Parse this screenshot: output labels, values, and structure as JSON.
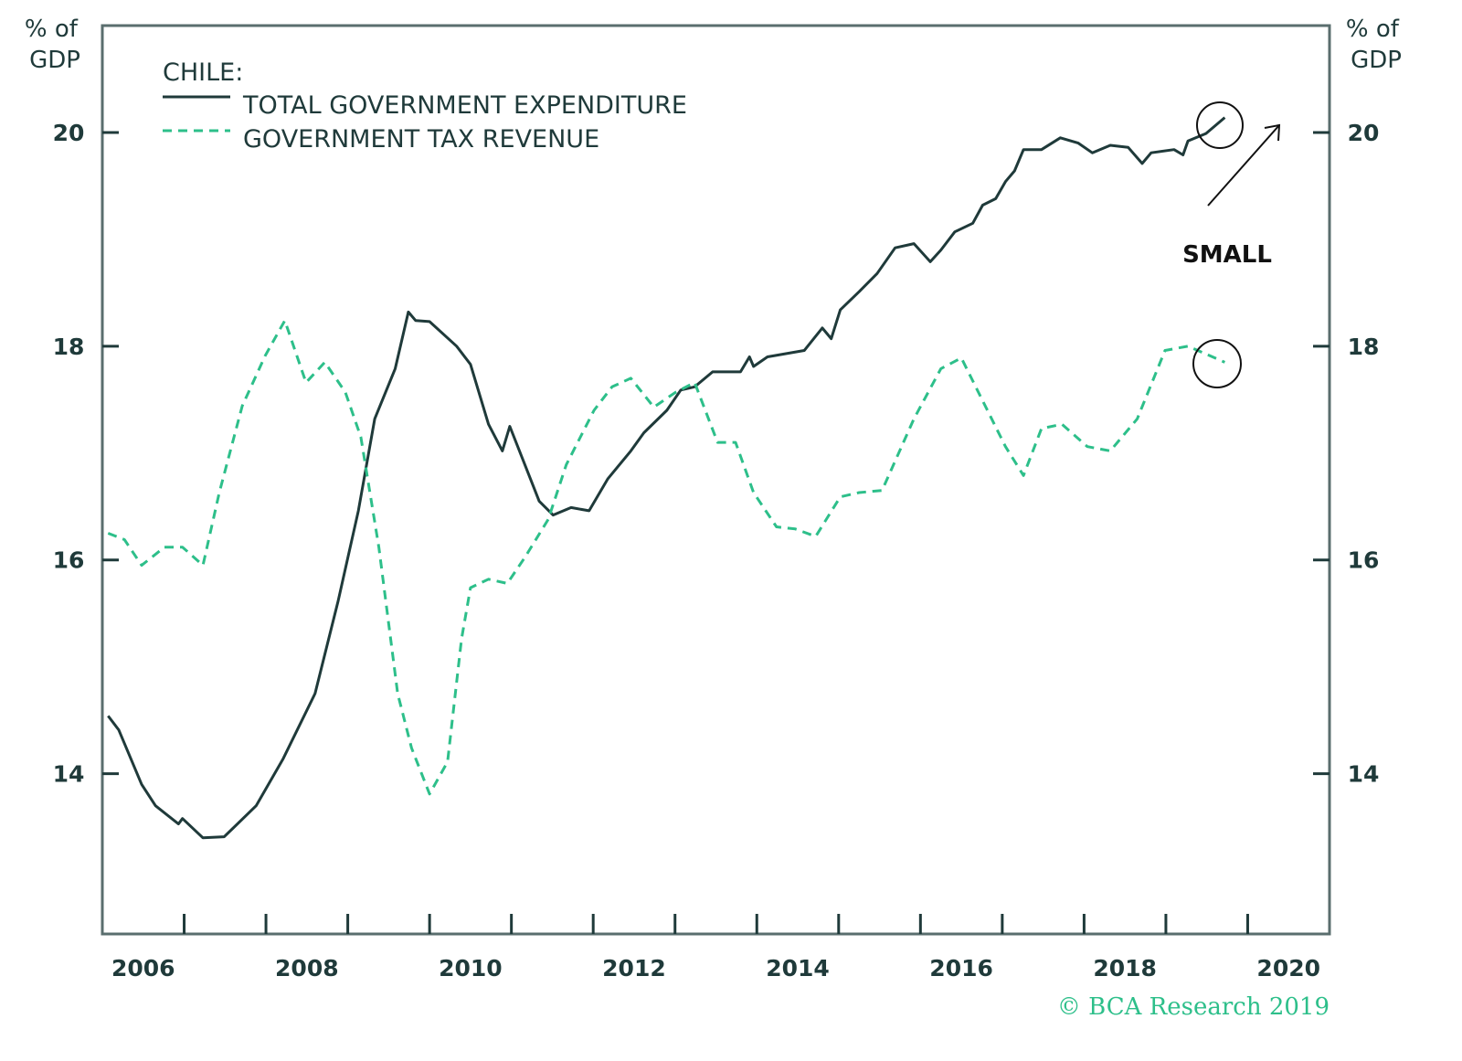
{
  "chart_data": {
    "type": "line",
    "legend_title": "CHILE:",
    "legend_placement": "top-left",
    "ylabel_left": "% of GDP",
    "ylabel_right": "% of GDP",
    "ylim": [
      12.5,
      21
    ],
    "xlim": [
      2006,
      2021
    ],
    "y_ticks": [
      14,
      16,
      18,
      20
    ],
    "x_tick_labels": [
      "2006",
      "2008",
      "2010",
      "2012",
      "2014",
      "2016",
      "2018",
      "2020"
    ],
    "grid": false,
    "colors": {
      "expenditure": "#1f3a3a",
      "tax": "#2dbf8a",
      "frame": "#5a6e6e"
    },
    "series": [
      {
        "name": "TOTAL GOVERNMENT EXPENDITURE",
        "style": "solid",
        "x": [
          2006.07,
          2006.2,
          2006.48,
          2006.65,
          2006.93,
          2006.98,
          2007.23,
          2007.49,
          2007.88,
          2008.21,
          2008.6,
          2008.88,
          2009.13,
          2009.33,
          2009.58,
          2009.74,
          2009.83,
          2010.0,
          2010.33,
          2010.5,
          2010.72,
          2010.89,
          2010.98,
          2011.34,
          2011.51,
          2011.73,
          2011.95,
          2012.18,
          2012.46,
          2012.62,
          2012.9,
          2013.07,
          2013.24,
          2013.46,
          2013.8,
          2013.91,
          2013.96,
          2014.13,
          2014.58,
          2014.8,
          2014.91,
          2015.02,
          2015.25,
          2015.47,
          2015.69,
          2015.92,
          2016.12,
          2016.25,
          2016.42,
          2016.64,
          2016.76,
          2016.92,
          2017.04,
          2017.15,
          2017.26,
          2017.48,
          2017.71,
          2017.93,
          2018.1,
          2018.32,
          2018.54,
          2018.71,
          2018.82,
          2019.1,
          2019.21,
          2019.27,
          2019.49,
          2019.72
        ],
        "values": [
          14.54,
          14.41,
          13.9,
          13.7,
          13.53,
          13.58,
          13.4,
          13.41,
          13.7,
          14.14,
          14.75,
          15.61,
          16.46,
          17.32,
          17.79,
          18.32,
          18.24,
          18.23,
          18.0,
          17.83,
          17.27,
          17.02,
          17.25,
          16.55,
          16.42,
          16.49,
          16.46,
          16.76,
          17.02,
          17.19,
          17.4,
          17.59,
          17.62,
          17.76,
          17.76,
          17.9,
          17.81,
          17.9,
          17.96,
          18.17,
          18.07,
          18.34,
          18.51,
          18.68,
          18.92,
          18.96,
          18.79,
          18.9,
          19.07,
          19.15,
          19.32,
          19.38,
          19.54,
          19.64,
          19.84,
          19.84,
          19.95,
          19.9,
          19.81,
          19.88,
          19.86,
          19.71,
          19.81,
          19.84,
          19.79,
          19.92,
          19.99,
          20.14
        ]
      },
      {
        "name": "GOVERNMENT TAX REVENUE",
        "style": "dashed",
        "x": [
          2006.07,
          2006.27,
          2006.48,
          2006.76,
          2006.98,
          2007.23,
          2007.43,
          2007.71,
          2007.99,
          2008.23,
          2008.49,
          2008.72,
          2008.97,
          2009.16,
          2009.38,
          2009.61,
          2009.78,
          2010.0,
          2010.22,
          2010.39,
          2010.5,
          2010.72,
          2010.95,
          2011.17,
          2011.45,
          2011.67,
          2012.01,
          2012.23,
          2012.46,
          2012.74,
          2013.01,
          2013.24,
          2013.52,
          2013.74,
          2013.96,
          2014.24,
          2014.47,
          2014.72,
          2015.02,
          2015.25,
          2015.53,
          2015.92,
          2016.25,
          2016.5,
          2016.76,
          2017.04,
          2017.26,
          2017.48,
          2017.73,
          2018.04,
          2018.32,
          2018.65,
          2018.99,
          2019.27,
          2019.72
        ],
        "values": [
          16.25,
          16.19,
          15.95,
          16.12,
          16.12,
          15.95,
          16.63,
          17.44,
          17.91,
          18.24,
          17.66,
          17.85,
          17.57,
          17.15,
          16.12,
          14.75,
          14.24,
          13.81,
          14.11,
          15.26,
          15.74,
          15.82,
          15.78,
          16.03,
          16.38,
          16.89,
          17.4,
          17.62,
          17.7,
          17.43,
          17.57,
          17.66,
          17.1,
          17.1,
          16.63,
          16.31,
          16.29,
          16.22,
          16.59,
          16.63,
          16.65,
          17.32,
          17.79,
          17.89,
          17.49,
          17.06,
          16.79,
          17.23,
          17.27,
          17.06,
          17.02,
          17.32,
          17.96,
          18.0,
          17.85
        ]
      }
    ],
    "annotations": [
      {
        "text": "SMALL",
        "type": "arrow-up-right"
      },
      {
        "type": "circle",
        "target": "TOTAL GOVERNMENT EXPENDITURE",
        "x": 2019.72,
        "y": 20.1
      },
      {
        "type": "circle",
        "target": "GOVERNMENT TAX REVENUE",
        "x": 2019.7,
        "y": 17.85
      }
    ],
    "credit": "© BCA Research 2019"
  }
}
